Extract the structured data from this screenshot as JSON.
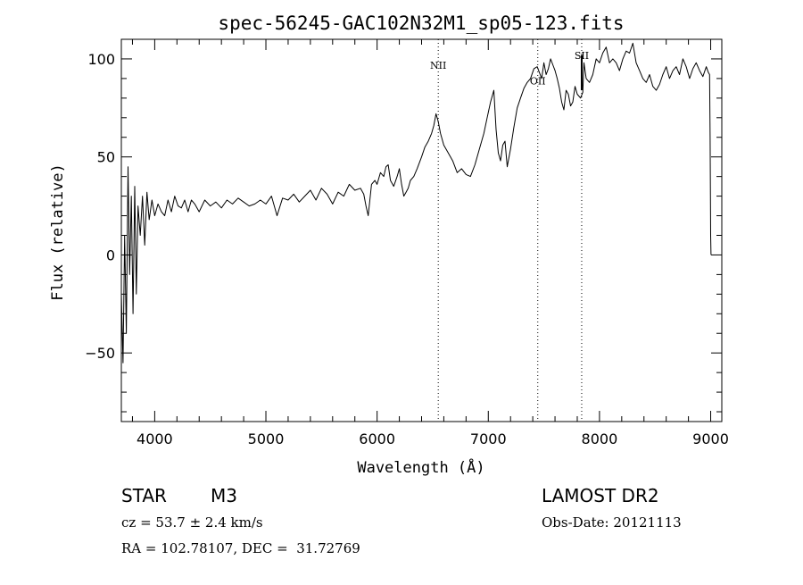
{
  "chart_data": {
    "type": "line",
    "title": "spec-56245-GAC102N32M1_sp05-123.fits",
    "xlabel": "Wavelength (Å)",
    "ylabel": "Flux (relative)",
    "xlim": [
      3700,
      9100
    ],
    "ylim": [
      -85,
      110
    ],
    "xticks": [
      4000,
      5000,
      6000,
      7000,
      8000,
      9000
    ],
    "yticks": [
      -50,
      0,
      50,
      100
    ],
    "x_minor_step": 200,
    "y_minor_step": 10,
    "grid": false,
    "series": [
      {
        "x": [
          3700,
          3715,
          3730,
          3745,
          3760,
          3775,
          3790,
          3805,
          3820,
          3835,
          3850,
          3870,
          3890,
          3910,
          3930,
          3950,
          3975,
          4000,
          4030,
          4060,
          4090,
          4120,
          4150,
          4180,
          4210,
          4240,
          4270,
          4300,
          4330,
          4360,
          4400,
          4450,
          4500,
          4550,
          4600,
          4650,
          4700,
          4750,
          4800,
          4850,
          4900,
          4950,
          5000,
          5050,
          5100,
          5150,
          5200,
          5250,
          5300,
          5350,
          5400,
          5450,
          5500,
          5550,
          5600,
          5650,
          5700,
          5750,
          5800,
          5850,
          5880,
          5900,
          5920,
          5950,
          5980,
          6000,
          6030,
          6060,
          6080,
          6100,
          6120,
          6150,
          6180,
          6200,
          6220,
          6240,
          6260,
          6280,
          6300,
          6330,
          6360,
          6400,
          6430,
          6460,
          6490,
          6510,
          6530,
          6550,
          6570,
          6600,
          6640,
          6680,
          6720,
          6760,
          6800,
          6840,
          6880,
          6920,
          6960,
          6990,
          7020,
          7050,
          7070,
          7090,
          7110,
          7130,
          7150,
          7170,
          7200,
          7230,
          7260,
          7290,
          7320,
          7350,
          7380,
          7410,
          7440,
          7460,
          7480,
          7500,
          7520,
          7540,
          7560,
          7580,
          7600,
          7620,
          7640,
          7660,
          7680,
          7700,
          7720,
          7740,
          7760,
          7780,
          7800,
          7830,
          7850,
          7860,
          7880,
          7910,
          7940,
          7970,
          8000,
          8030,
          8060,
          8090,
          8120,
          8150,
          8180,
          8210,
          8240,
          8270,
          8300,
          8330,
          8360,
          8390,
          8420,
          8450,
          8480,
          8510,
          8540,
          8570,
          8600,
          8630,
          8660,
          8690,
          8720,
          8750,
          8780,
          8810,
          8840,
          8870,
          8900,
          8930,
          8960,
          8980,
          8990,
          8995,
          9000,
          9003
        ],
        "y": [
          -20,
          -55,
          10,
          -40,
          45,
          -10,
          30,
          -30,
          35,
          -20,
          25,
          10,
          30,
          5,
          32,
          18,
          28,
          20,
          26,
          22,
          20,
          28,
          22,
          30,
          25,
          24,
          28,
          22,
          28,
          26,
          22,
          28,
          25,
          27,
          24,
          28,
          26,
          29,
          27,
          25,
          26,
          28,
          26,
          30,
          20,
          29,
          28,
          31,
          27,
          30,
          33,
          28,
          34,
          31,
          26,
          32,
          30,
          36,
          33,
          34,
          31,
          25,
          20,
          36,
          38,
          36,
          42,
          40,
          45,
          46,
          38,
          35,
          40,
          44,
          36,
          30,
          32,
          34,
          38,
          40,
          44,
          50,
          55,
          58,
          62,
          66,
          72,
          68,
          62,
          56,
          52,
          48,
          42,
          44,
          41,
          40,
          46,
          54,
          62,
          70,
          78,
          84,
          64,
          52,
          48,
          56,
          58,
          45,
          54,
          65,
          75,
          80,
          85,
          88,
          90,
          95,
          96,
          93,
          90,
          98,
          92,
          95,
          100,
          97,
          94,
          90,
          85,
          78,
          74,
          84,
          82,
          76,
          78,
          86,
          82,
          80,
          83,
          98,
          90,
          88,
          92,
          100,
          98,
          103,
          106,
          98,
          100,
          98,
          94,
          100,
          104,
          103,
          108,
          98,
          94,
          90,
          88,
          92,
          86,
          84,
          87,
          92,
          96,
          90,
          94,
          96,
          92,
          100,
          96,
          90,
          95,
          98,
          94,
          91,
          96,
          93,
          92,
          60,
          10,
          0
        ]
      }
    ],
    "annotations": [
      {
        "label": "NII",
        "x": 6550,
        "label_y": 95
      },
      {
        "label": "OII",
        "x": 7445,
        "label_y": 87
      },
      {
        "label": "SII",
        "x": 7840,
        "label_y": 100
      }
    ],
    "sii_marker": {
      "x": 7840,
      "y_from": 84,
      "y_to": 102
    }
  },
  "info": {
    "object_class": "STAR",
    "subclass": "M3",
    "survey": "LAMOST DR2",
    "redshift_line": "cz = 53.7 ± 2.4 km/s",
    "obs_date": "Obs-Date: 20121113",
    "coords": "RA = 102.78107, DEC =  31.72769"
  }
}
